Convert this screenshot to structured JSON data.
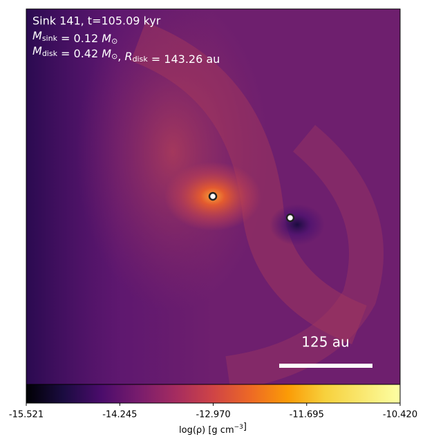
{
  "chart_data": {
    "type": "image",
    "title": "Sink 141, t=105.09 kyr",
    "annotations": [
      [
        "M",
        {
          "sub": "sink"
        },
        " = 0.12 ",
        "M",
        {
          "sub": "⊙"
        }
      ],
      [
        "M",
        {
          "sub": "disk"
        },
        " = 0.42 ",
        "M",
        {
          "sub": "⊙"
        },
        ", ",
        "R",
        {
          "sub": "disk"
        },
        " = 143.26 au"
      ]
    ],
    "scale_bar_label": "125 au",
    "colorbar": {
      "label": [
        "log(ρ) [g cm",
        {
          "sup": "−3"
        },
        "]"
      ],
      "clim": [
        -15.521,
        -10.42
      ],
      "ticks": [
        -15.521,
        -14.245,
        {
          "value": -12.97,
          "label": "-12.970"
        },
        -11.695,
        {
          "value": -10.42,
          "label": "-10.420"
        }
      ],
      "colormap": "inferno"
    }
  }
}
